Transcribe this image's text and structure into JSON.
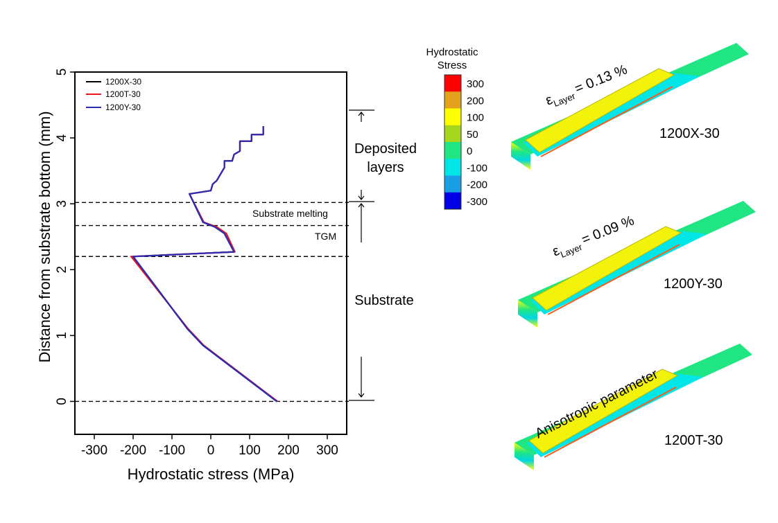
{
  "chart_data": {
    "type": "line",
    "xlabel": "Hydrostatic stress (MPa)",
    "ylabel": "Distance from substrate bottom (mm)",
    "xlim": [
      -350,
      350
    ],
    "ylim": [
      -0.5,
      5
    ],
    "xticks": [
      -300,
      -200,
      -100,
      0,
      100,
      200,
      300
    ],
    "yticks": [
      0,
      1,
      2,
      3,
      4,
      5
    ],
    "grid": false,
    "legend_position": "top-left",
    "series": [
      {
        "name": "1200X-30",
        "color": "#000000",
        "points": [
          [
            170,
            0
          ],
          [
            -20,
            0.85
          ],
          [
            -60,
            1.1
          ],
          [
            -200,
            2.2
          ],
          [
            60,
            2.27
          ],
          [
            35,
            2.55
          ],
          [
            10,
            2.65
          ],
          [
            -20,
            2.72
          ],
          [
            -55,
            3.15
          ],
          [
            0,
            3.2
          ],
          [
            5,
            3.3
          ],
          [
            15,
            3.35
          ],
          [
            25,
            3.45
          ],
          [
            35,
            3.55
          ],
          [
            35,
            3.65
          ],
          [
            55,
            3.65
          ],
          [
            60,
            3.75
          ],
          [
            75,
            3.8
          ],
          [
            75,
            3.95
          ],
          [
            105,
            3.95
          ],
          [
            105,
            4.05
          ],
          [
            135,
            4.05
          ],
          [
            135,
            4.18
          ]
        ]
      },
      {
        "name": "1200T-30",
        "color": "#e8141e",
        "points": [
          [
            172,
            0
          ],
          [
            -18,
            0.85
          ],
          [
            -58,
            1.1
          ],
          [
            -205,
            2.2
          ],
          [
            62,
            2.27
          ],
          [
            40,
            2.55
          ],
          [
            15,
            2.65
          ],
          [
            -18,
            2.72
          ],
          [
            -55,
            3.15
          ],
          [
            0,
            3.2
          ],
          [
            5,
            3.3
          ],
          [
            15,
            3.35
          ],
          [
            25,
            3.45
          ],
          [
            35,
            3.55
          ],
          [
            35,
            3.65
          ],
          [
            55,
            3.65
          ],
          [
            60,
            3.75
          ],
          [
            75,
            3.8
          ],
          [
            75,
            3.95
          ],
          [
            105,
            3.95
          ],
          [
            105,
            4.05
          ],
          [
            135,
            4.05
          ],
          [
            135,
            4.18
          ]
        ]
      },
      {
        "name": "1200Y-30",
        "color": "#2b2bb5",
        "points": [
          [
            170,
            0
          ],
          [
            -20,
            0.85
          ],
          [
            -60,
            1.1
          ],
          [
            -200,
            2.2
          ],
          [
            60,
            2.27
          ],
          [
            35,
            2.55
          ],
          [
            10,
            2.65
          ],
          [
            -20,
            2.72
          ],
          [
            -55,
            3.15
          ],
          [
            0,
            3.2
          ],
          [
            5,
            3.3
          ],
          [
            15,
            3.35
          ],
          [
            25,
            3.45
          ],
          [
            35,
            3.55
          ],
          [
            35,
            3.65
          ],
          [
            55,
            3.65
          ],
          [
            60,
            3.75
          ],
          [
            75,
            3.8
          ],
          [
            75,
            3.95
          ],
          [
            105,
            3.95
          ],
          [
            105,
            4.05
          ],
          [
            135,
            4.05
          ],
          [
            135,
            4.18
          ]
        ]
      }
    ],
    "reference_lines_y": [
      0,
      2.2,
      2.67,
      3.02
    ],
    "annotations": {
      "substrate_melting": "Substrate melting",
      "tgm": "TGM",
      "deposited_line1": "Deposited",
      "deposited_line2": "layers",
      "substrate": "Substrate"
    }
  },
  "colorbar": {
    "title_line1": "Hydrostatic",
    "title_line2": "Stress",
    "levels": [
      {
        "label": "300",
        "color": "#ff0000"
      },
      {
        "label": "200",
        "color": "#e2a21c"
      },
      {
        "label": "100",
        "color": "#ffff00"
      },
      {
        "label": "50",
        "color": "#a6d71e"
      },
      {
        "label": "0",
        "color": "#1fe682"
      },
      {
        "label": "-100",
        "color": "#00e6e6"
      },
      {
        "label": "-200",
        "color": "#1a9ee6"
      },
      {
        "label": "-300",
        "color": "#0000e6"
      }
    ]
  },
  "models": [
    {
      "name": "1200X-30",
      "eps_symbol": "ε",
      "eps_sub": "Layer",
      "eps_value": "= 0.13 %"
    },
    {
      "name": "1200Y-30",
      "eps_symbol": "ε",
      "eps_sub": "Layer",
      "eps_value": "= 0.09 %"
    },
    {
      "name": "1200T-30",
      "caption": "Anisotropic parameter"
    }
  ]
}
